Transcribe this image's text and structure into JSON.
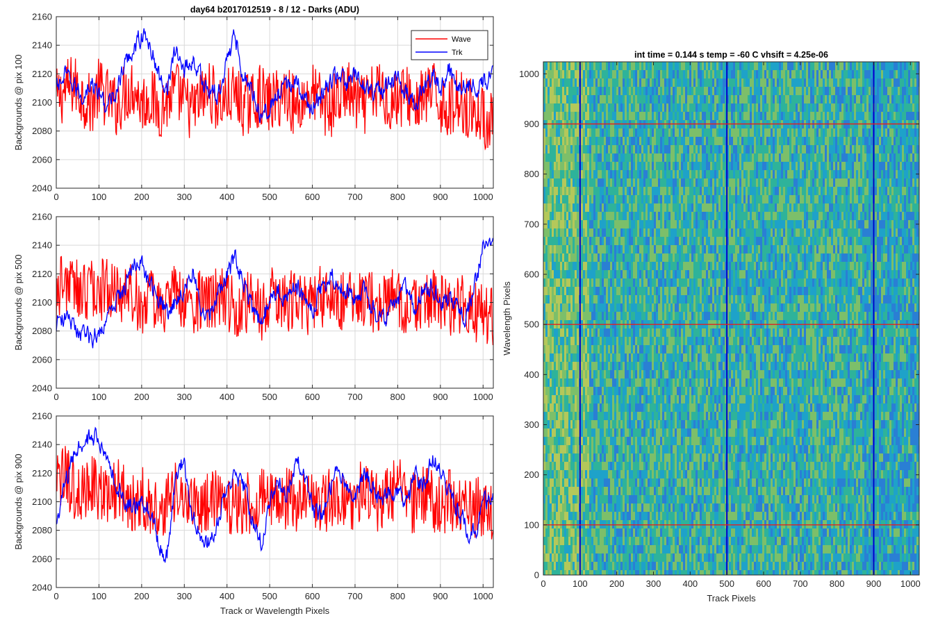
{
  "figure": {
    "colors": {
      "wave": "#ff0000",
      "trk": "#0000ff",
      "grid": "#d9d9d9",
      "axis": "#262626"
    }
  },
  "chart_data": [
    {
      "type": "line",
      "title": "day64 b2017012519 - 8 / 12 - Darks (ADU)",
      "xlabel": "",
      "ylabel": "Backgrounds @ pix 100",
      "xlim": [
        0,
        1024
      ],
      "ylim": [
        2040,
        2160
      ],
      "xticks": [
        0,
        100,
        200,
        300,
        400,
        500,
        600,
        700,
        800,
        900,
        1000
      ],
      "yticks": [
        2040,
        2060,
        2080,
        2100,
        2120,
        2140,
        2160
      ],
      "grid": true,
      "legend": {
        "position": "top-right",
        "entries": [
          "Wave",
          "Trk"
        ]
      },
      "series": [
        {
          "name": "Wave",
          "color": "#ff0000",
          "x": [
            0,
            20,
            40,
            60,
            80,
            100,
            120,
            140,
            160,
            180,
            200,
            220,
            240,
            260,
            280,
            300,
            320,
            340,
            360,
            380,
            400,
            420,
            440,
            460,
            480,
            500,
            520,
            540,
            560,
            580,
            600,
            620,
            640,
            660,
            680,
            700,
            720,
            740,
            760,
            780,
            800,
            820,
            840,
            860,
            880,
            900,
            920,
            940,
            960,
            980,
            1000,
            1020
          ],
          "y": [
            2102,
            2108,
            2113,
            2105,
            2098,
            2110,
            2103,
            2097,
            2106,
            2112,
            2099,
            2104,
            2095,
            2101,
            2108,
            2100,
            2094,
            2103,
            2109,
            2098,
            2102,
            2106,
            2097,
            2101,
            2105,
            2099,
            2103,
            2108,
            2096,
            2102,
            2107,
            2100,
            2095,
            2103,
            2109,
            2101,
            2097,
            2104,
            2110,
            2099,
            2103,
            2106,
            2098,
            2102,
            2108,
            2100,
            2096,
            2103,
            2098,
            2094,
            2090,
            2085
          ]
        },
        {
          "name": "Trk",
          "color": "#0000ff",
          "x": [
            0,
            20,
            40,
            60,
            80,
            100,
            120,
            140,
            160,
            180,
            200,
            220,
            240,
            260,
            280,
            300,
            320,
            340,
            360,
            380,
            400,
            420,
            440,
            460,
            480,
            500,
            520,
            540,
            560,
            580,
            600,
            620,
            640,
            660,
            680,
            700,
            720,
            740,
            760,
            780,
            800,
            820,
            840,
            860,
            880,
            900,
            920,
            940,
            960,
            980,
            1000,
            1020
          ],
          "y": [
            2110,
            2118,
            2112,
            2104,
            2114,
            2106,
            2096,
            2108,
            2125,
            2138,
            2147,
            2140,
            2118,
            2112,
            2136,
            2124,
            2130,
            2116,
            2108,
            2104,
            2132,
            2146,
            2118,
            2108,
            2092,
            2098,
            2104,
            2110,
            2116,
            2102,
            2096,
            2104,
            2114,
            2120,
            2112,
            2118,
            2112,
            2110,
            2106,
            2112,
            2116,
            2108,
            2100,
            2112,
            2118,
            2110,
            2124,
            2112,
            2114,
            2110,
            2112,
            2124
          ]
        }
      ]
    },
    {
      "type": "line",
      "title": "",
      "xlabel": "",
      "ylabel": "Backgrounds @ pix 500",
      "xlim": [
        0,
        1024
      ],
      "ylim": [
        2040,
        2160
      ],
      "xticks": [
        0,
        100,
        200,
        300,
        400,
        500,
        600,
        700,
        800,
        900,
        1000
      ],
      "yticks": [
        2040,
        2060,
        2080,
        2100,
        2120,
        2140,
        2160
      ],
      "grid": true,
      "series": [
        {
          "name": "Wave",
          "color": "#ff0000",
          "x": [
            0,
            20,
            40,
            60,
            80,
            100,
            120,
            140,
            160,
            180,
            200,
            220,
            240,
            260,
            280,
            300,
            320,
            340,
            360,
            380,
            400,
            420,
            440,
            460,
            480,
            500,
            520,
            540,
            560,
            580,
            600,
            620,
            640,
            660,
            680,
            700,
            720,
            740,
            760,
            780,
            800,
            820,
            840,
            860,
            880,
            900,
            920,
            940,
            960,
            980,
            1000,
            1020
          ],
          "y": [
            2108,
            2116,
            2111,
            2104,
            2112,
            2106,
            2114,
            2102,
            2110,
            2105,
            2098,
            2103,
            2096,
            2102,
            2107,
            2099,
            2095,
            2102,
            2098,
            2104,
            2100,
            2096,
            2101,
            2099,
            2094,
            2102,
            2106,
            2098,
            2103,
            2097,
            2101,
            2105,
            2099,
            2096,
            2102,
            2098,
            2104,
            2100,
            2097,
            2103,
            2099,
            2095,
            2101,
            2097,
            2102,
            2098,
            2094,
            2099,
            2096,
            2092,
            2095,
            2090
          ]
        },
        {
          "name": "Trk",
          "color": "#0000ff",
          "x": [
            0,
            20,
            40,
            60,
            80,
            100,
            120,
            140,
            160,
            180,
            200,
            220,
            240,
            260,
            280,
            300,
            320,
            340,
            360,
            380,
            400,
            420,
            440,
            460,
            480,
            500,
            520,
            540,
            560,
            580,
            600,
            620,
            640,
            660,
            680,
            700,
            720,
            740,
            760,
            780,
            800,
            820,
            840,
            860,
            880,
            900,
            920,
            940,
            960,
            980,
            1000,
            1020
          ],
          "y": [
            2085,
            2090,
            2082,
            2078,
            2074,
            2080,
            2090,
            2098,
            2112,
            2128,
            2126,
            2112,
            2102,
            2095,
            2100,
            2112,
            2120,
            2098,
            2090,
            2105,
            2118,
            2130,
            2112,
            2095,
            2086,
            2100,
            2108,
            2104,
            2112,
            2102,
            2095,
            2110,
            2120,
            2112,
            2106,
            2102,
            2110,
            2096,
            2088,
            2092,
            2102,
            2110,
            2098,
            2106,
            2114,
            2100,
            2102,
            2098,
            2090,
            2110,
            2140,
            2142
          ]
        }
      ]
    },
    {
      "type": "line",
      "title": "",
      "xlabel": "Track or Wavelength Pixels",
      "ylabel": "Backgrounds @ pix 900",
      "xlim": [
        0,
        1024
      ],
      "ylim": [
        2040,
        2160
      ],
      "xticks": [
        0,
        100,
        200,
        300,
        400,
        500,
        600,
        700,
        800,
        900,
        1000
      ],
      "yticks": [
        2040,
        2060,
        2080,
        2100,
        2120,
        2140,
        2160
      ],
      "grid": true,
      "series": [
        {
          "name": "Wave",
          "color": "#ff0000",
          "x": [
            0,
            20,
            40,
            60,
            80,
            100,
            120,
            140,
            160,
            180,
            200,
            220,
            240,
            260,
            280,
            300,
            320,
            340,
            360,
            380,
            400,
            420,
            440,
            460,
            480,
            500,
            520,
            540,
            560,
            580,
            600,
            620,
            640,
            660,
            680,
            700,
            720,
            740,
            760,
            780,
            800,
            820,
            840,
            860,
            880,
            900,
            920,
            940,
            960,
            980,
            1000,
            1020
          ],
          "y": [
            2112,
            2118,
            2110,
            2104,
            2114,
            2108,
            2102,
            2110,
            2106,
            2100,
            2104,
            2098,
            2094,
            2100,
            2106,
            2098,
            2102,
            2096,
            2100,
            2104,
            2098,
            2094,
            2101,
            2097,
            2102,
            2106,
            2099,
            2103,
            2098,
            2104,
            2100,
            2096,
            2102,
            2106,
            2099,
            2103,
            2108,
            2101,
            2097,
            2104,
            2110,
            2102,
            2098,
            2104,
            2100,
            2096,
            2102,
            2098,
            2100,
            2096,
            2098,
            2094
          ]
        },
        {
          "name": "Trk",
          "color": "#0000ff",
          "x": [
            0,
            20,
            40,
            60,
            80,
            100,
            120,
            140,
            160,
            180,
            200,
            220,
            240,
            260,
            280,
            300,
            320,
            340,
            360,
            380,
            400,
            420,
            440,
            460,
            480,
            500,
            520,
            540,
            560,
            580,
            600,
            620,
            640,
            660,
            680,
            700,
            720,
            740,
            760,
            780,
            800,
            820,
            840,
            860,
            880,
            900,
            920,
            940,
            960,
            980,
            1000,
            1020
          ],
          "y": [
            2085,
            2110,
            2132,
            2140,
            2146,
            2142,
            2128,
            2112,
            2100,
            2095,
            2098,
            2094,
            2070,
            2062,
            2118,
            2128,
            2090,
            2072,
            2070,
            2090,
            2108,
            2120,
            2110,
            2085,
            2072,
            2098,
            2116,
            2102,
            2128,
            2120,
            2096,
            2088,
            2110,
            2122,
            2112,
            2104,
            2120,
            2112,
            2098,
            2105,
            2110,
            2095,
            2118,
            2112,
            2130,
            2122,
            2104,
            2096,
            2082,
            2076,
            2100,
            2102
          ]
        }
      ]
    },
    {
      "type": "heatmap",
      "title": "int time = 0.144 s   temp = -60 C   vhsift = 4.25e-06",
      "xlabel": "Track Pixels",
      "ylabel": "Wavelength Pixels",
      "xlim": [
        0,
        1024
      ],
      "ylim": [
        0,
        1024
      ],
      "xticks": [
        0,
        100,
        200,
        300,
        400,
        500,
        600,
        700,
        800,
        900,
        1000
      ],
      "yticks": [
        0,
        100,
        200,
        300,
        400,
        500,
        600,
        700,
        800,
        900,
        1000
      ],
      "colormap": [
        "#2a7fd4",
        "#1ea2c9",
        "#2eb39a",
        "#7cbf6a",
        "#b4c85a"
      ],
      "vertical_lines": {
        "x": [
          100,
          500,
          900
        ],
        "color": "#0000cc"
      },
      "horizontal_lines": {
        "y": [
          100,
          500,
          900
        ],
        "color": "#e02020"
      }
    }
  ]
}
